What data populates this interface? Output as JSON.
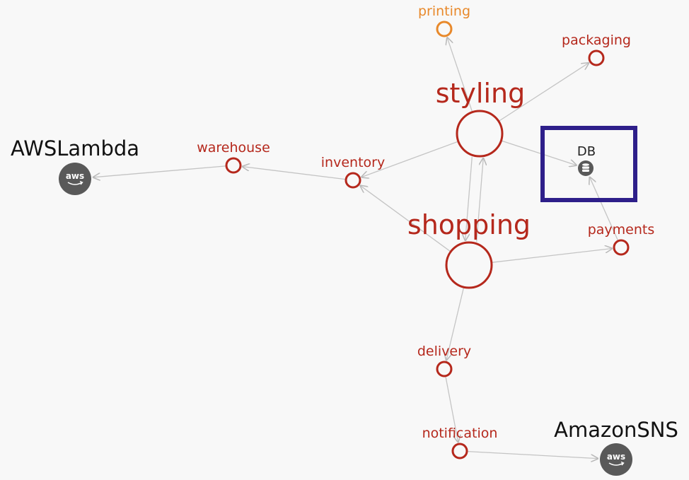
{
  "colors": {
    "service": "#b5281c",
    "warning": "#e8892b",
    "edge": "#c4c4c4",
    "external_fill": "#595959",
    "highlight_box": "#2e1f8a",
    "external_label": "#111111"
  },
  "nodes": {
    "styling": {
      "label": "styling",
      "status": "service"
    },
    "shopping": {
      "label": "shopping",
      "status": "service"
    },
    "printing": {
      "label": "printing",
      "status": "warning"
    },
    "packaging": {
      "label": "packaging",
      "status": "service"
    },
    "inventory": {
      "label": "inventory",
      "status": "service"
    },
    "warehouse": {
      "label": "warehouse",
      "status": "service"
    },
    "payments": {
      "label": "payments",
      "status": "service"
    },
    "delivery": {
      "label": "delivery",
      "status": "service"
    },
    "notification": {
      "label": "notification",
      "status": "service"
    },
    "db": {
      "label": "DB",
      "icon": "database-icon"
    },
    "aws_lambda": {
      "label": "AWSLambda",
      "badge": "aws",
      "icon": "aws-icon"
    },
    "amazon_sns": {
      "label": "AmazonSNS",
      "badge": "aws",
      "icon": "aws-icon"
    }
  },
  "edges": [
    {
      "from": "styling",
      "to": "printing"
    },
    {
      "from": "styling",
      "to": "packaging"
    },
    {
      "from": "styling",
      "to": "inventory"
    },
    {
      "from": "styling",
      "to": "db"
    },
    {
      "from": "styling",
      "to": "shopping"
    },
    {
      "from": "shopping",
      "to": "styling"
    },
    {
      "from": "shopping",
      "to": "inventory"
    },
    {
      "from": "shopping",
      "to": "payments"
    },
    {
      "from": "shopping",
      "to": "delivery"
    },
    {
      "from": "payments",
      "to": "db"
    },
    {
      "from": "inventory",
      "to": "warehouse"
    },
    {
      "from": "warehouse",
      "to": "aws_lambda"
    },
    {
      "from": "delivery",
      "to": "notification"
    },
    {
      "from": "notification",
      "to": "amazon_sns"
    }
  ]
}
